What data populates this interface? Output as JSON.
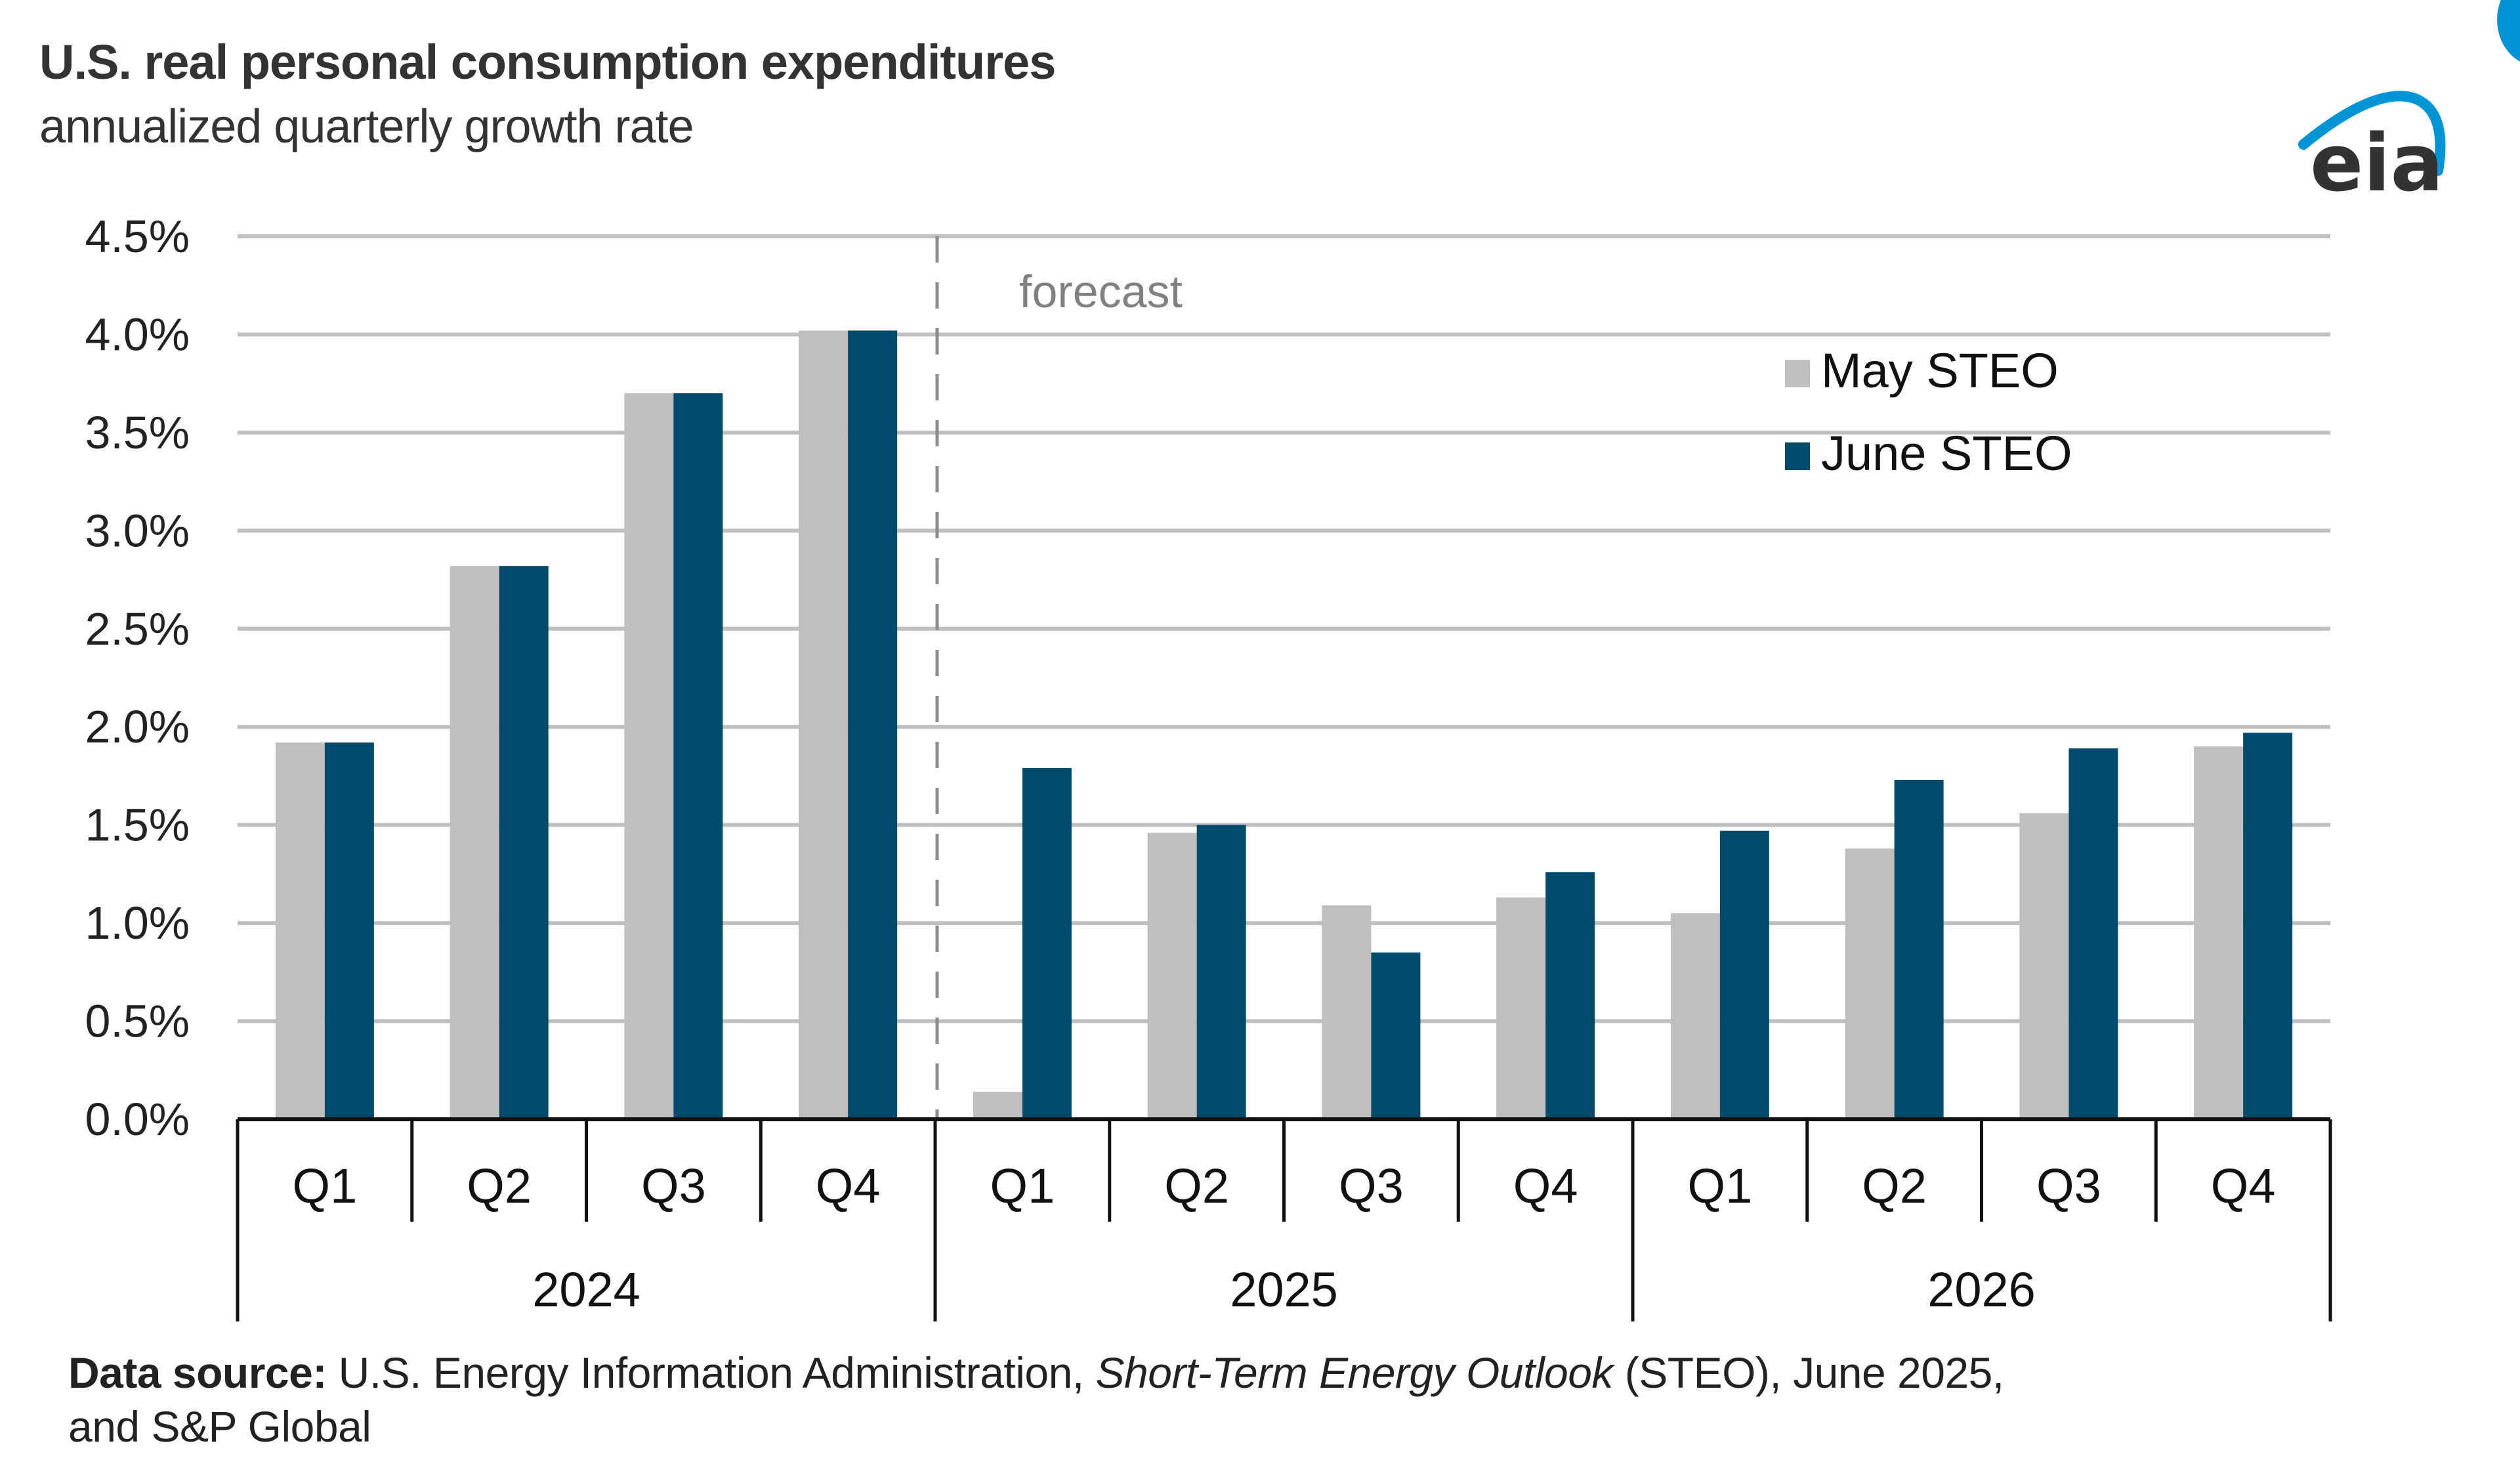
{
  "header": {
    "title": "U.S. real personal consumption expenditures",
    "subtitle": "annualized  quarterly growth rate"
  },
  "logo": {
    "text": "eia",
    "icon": "eia-logo-icon",
    "arc_color": "#0096d6",
    "text_color": "#333333"
  },
  "source": {
    "label": "Data source:",
    "text_before": " U.S. Energy Information Administration, ",
    "italic": "Short-Term Energy Outlook",
    "text_after": " (STEO), June 2025,",
    "line2": "and S&P Global"
  },
  "chart_data": {
    "type": "bar",
    "title": "U.S. real personal consumption expenditures",
    "subtitle": "annualized  quarterly growth rate",
    "xlabel": "",
    "ylabel": "",
    "ylim": [
      0,
      4.5
    ],
    "yticks": [
      "0.0%",
      "0.5%",
      "1.0%",
      "1.5%",
      "2.0%",
      "2.5%",
      "3.0%",
      "3.5%",
      "4.0%",
      "4.5%"
    ],
    "ytick_values": [
      0,
      0.5,
      1.0,
      1.5,
      2.0,
      2.5,
      3.0,
      3.5,
      4.0,
      4.5
    ],
    "grid": true,
    "legend_position": "top-right",
    "categories": [
      "Q1",
      "Q2",
      "Q3",
      "Q4",
      "Q1",
      "Q2",
      "Q3",
      "Q4",
      "Q1",
      "Q2",
      "Q3",
      "Q4"
    ],
    "groups": [
      {
        "label": "2024",
        "span": 4
      },
      {
        "label": "2025",
        "span": 4
      },
      {
        "label": "2026",
        "span": 4
      }
    ],
    "series": [
      {
        "name": "May STEO",
        "color": "#bfbfbf",
        "values": [
          1.92,
          2.82,
          3.7,
          4.02,
          0.14,
          1.46,
          1.09,
          1.13,
          1.05,
          1.38,
          1.56,
          1.9
        ]
      },
      {
        "name": "June STEO",
        "color": "#004a6c",
        "values": [
          1.92,
          2.82,
          3.7,
          4.02,
          1.79,
          1.5,
          0.85,
          1.26,
          1.47,
          1.73,
          1.89,
          1.97
        ]
      }
    ],
    "annotations": [
      {
        "text": "forecast",
        "type": "vertical-dashed-line",
        "after_category_index": 4
      }
    ]
  }
}
